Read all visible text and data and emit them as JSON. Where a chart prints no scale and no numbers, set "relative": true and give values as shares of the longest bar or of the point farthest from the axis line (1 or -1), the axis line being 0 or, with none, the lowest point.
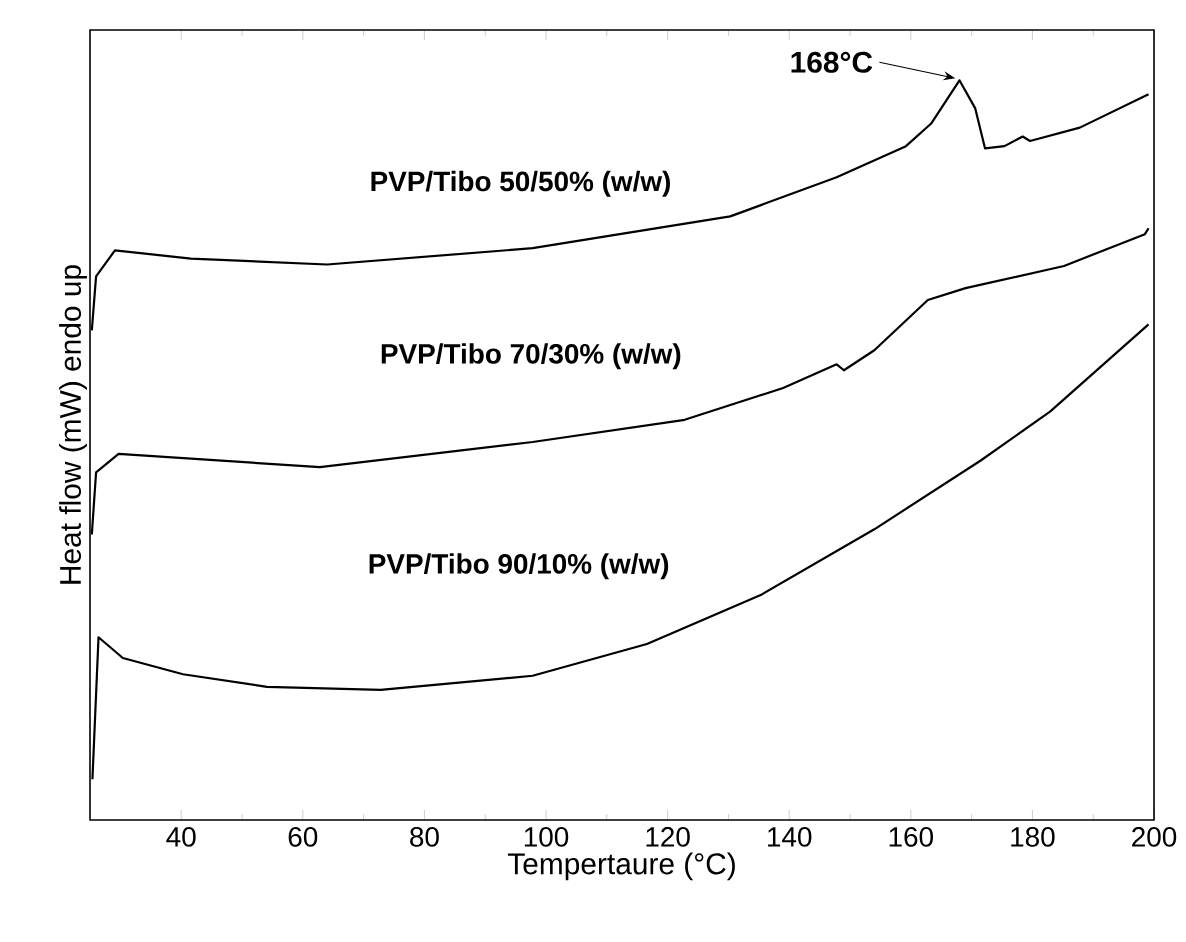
{
  "chart_data": {
    "type": "line",
    "xlabel": "Tempertaure (°C)",
    "ylabel": "Heat flow (mW) endo up",
    "relative": true,
    "xlim": [
      25,
      200
    ],
    "xticks": [
      40,
      60,
      80,
      100,
      120,
      140,
      160,
      180,
      200
    ],
    "legend": false,
    "grid": false,
    "marker": "none",
    "line_style": "solid",
    "series": [
      {
        "name": "**PVP/Tibo 50/50% (w/w)**",
        "color": "#000000",
        "x": [
          25.3,
          26,
          29.1,
          41.6,
          64,
          97.8,
          130.3,
          147.8,
          159.2,
          163.4,
          168,
          170.6,
          172.2,
          175.4,
          178.4,
          179.6,
          187.8,
          199.1
        ],
        "values": [
          0.662,
          0.735,
          0.77,
          0.759,
          0.751,
          0.773,
          0.816,
          0.869,
          0.911,
          0.942,
          1.0,
          0.962,
          0.908,
          0.911,
          0.924,
          0.918,
          0.936,
          0.981
        ]
      },
      {
        "name": "**PVP/Tibo 70/30% (w/w)**",
        "color": "#000000",
        "x": [
          25.3,
          26,
          29.7,
          62.8,
          97.8,
          122.8,
          139,
          147.8,
          149,
          154,
          162.8,
          169,
          185.2,
          198.5,
          199.1
        ],
        "values": [
          0.386,
          0.47,
          0.495,
          0.477,
          0.511,
          0.541,
          0.584,
          0.616,
          0.608,
          0.635,
          0.703,
          0.719,
          0.749,
          0.792,
          0.8
        ]
      },
      {
        "name": "**PVP/Tibo 90/10% (w/w)**",
        "color": "#000000",
        "x": [
          25.4,
          26.4,
          30.4,
          40.3,
          54.1,
          72.8,
          97.8,
          116.6,
          135.5,
          154,
          171.5,
          182.9,
          199.1
        ],
        "values": [
          0.055,
          0.247,
          0.219,
          0.197,
          0.18,
          0.176,
          0.195,
          0.238,
          0.305,
          0.393,
          0.486,
          0.552,
          0.67
        ]
      }
    ],
    "annotations": [
      {
        "text": "**168°C**",
        "x": 168,
        "y": 1.0
      }
    ]
  }
}
